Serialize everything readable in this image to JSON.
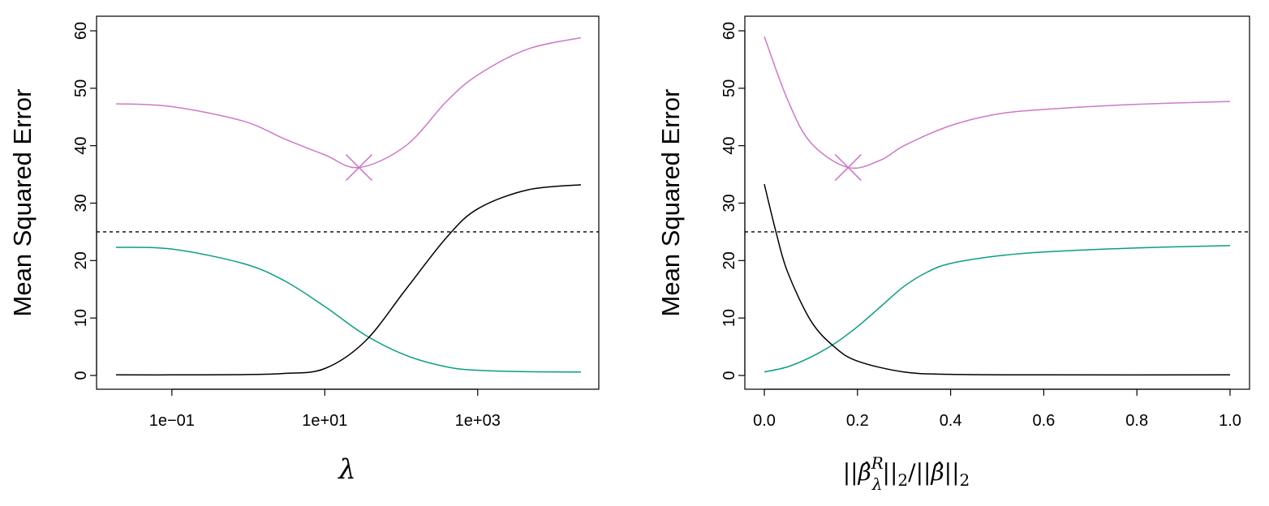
{
  "colors": {
    "test_mse": "#CC79C7",
    "variance": "#0A9E80",
    "bias": "#000000",
    "reference": "#000000"
  },
  "chart_data": [
    {
      "type": "line",
      "xscale": "log",
      "xlabel": "λ",
      "ylabel": "Mean Squared Error",
      "xlim": [
        0.0186,
        22400
      ],
      "ylim": [
        0,
        60
      ],
      "x_ticks": [
        0.1,
        10,
        1000
      ],
      "x_tick_labels": [
        "1e−01",
        "1e+01",
        "1e+03"
      ],
      "y_ticks": [
        0,
        10,
        20,
        30,
        40,
        50,
        60
      ],
      "y_tick_labels": [
        "0",
        "10",
        "20",
        "30",
        "40",
        "50",
        "60"
      ],
      "grid": false,
      "hline": {
        "y": 25,
        "style": "dashed"
      },
      "marker": {
        "x": 28,
        "y": 36.2,
        "shape": "cross",
        "series": "test_mse"
      },
      "series": [
        {
          "key": "test_mse",
          "x": [
            0.0186,
            0.1,
            0.85,
            2.95,
            10,
            28,
            115,
            390,
            1000,
            4470,
            22400
          ],
          "y": [
            47.3,
            46.8,
            44.3,
            41.2,
            38.4,
            36.2,
            40.0,
            47.7,
            52.3,
            56.8,
            58.8
          ]
        },
        {
          "key": "variance",
          "x": [
            0.0186,
            0.1,
            0.85,
            2.95,
            10,
            34,
            115,
            390,
            1000,
            4470,
            22400
          ],
          "y": [
            22.3,
            22.0,
            19.5,
            16.5,
            12.0,
            7.0,
            3.5,
            1.5,
            0.9,
            0.65,
            0.6
          ]
        },
        {
          "key": "bias",
          "x": [
            0.0186,
            0.1,
            0.85,
            2.95,
            10,
            34,
            115,
            390,
            1000,
            4470,
            22400
          ],
          "y": [
            0.1,
            0.1,
            0.15,
            0.35,
            1.2,
            6.0,
            15.0,
            24.0,
            29.0,
            32.3,
            33.2
          ]
        }
      ]
    },
    {
      "type": "line",
      "xscale": "linear",
      "xlabel_parts": [
        "||",
        "β̂",
        "R",
        "λ",
        "||",
        "2",
        "/||",
        "β̂",
        "||",
        "2"
      ],
      "ylabel": "Mean Squared Error",
      "xlim": [
        0,
        1
      ],
      "ylim": [
        0,
        60
      ],
      "x_ticks": [
        0,
        0.2,
        0.4,
        0.6,
        0.8,
        1.0
      ],
      "x_tick_labels": [
        "0.0",
        "0.2",
        "0.4",
        "0.6",
        "0.8",
        "1.0"
      ],
      "y_ticks": [
        0,
        10,
        20,
        30,
        40,
        50,
        60
      ],
      "y_tick_labels": [
        "0",
        "10",
        "20",
        "30",
        "40",
        "50",
        "60"
      ],
      "grid": false,
      "hline": {
        "y": 25,
        "style": "dashed"
      },
      "marker": {
        "x": 0.18,
        "y": 36.2,
        "shape": "cross",
        "series": "test_mse"
      },
      "series": [
        {
          "key": "test_mse",
          "x": [
            0,
            0.05,
            0.1,
            0.18,
            0.25,
            0.3,
            0.4,
            0.5,
            0.6,
            0.8,
            1.0
          ],
          "y": [
            59.0,
            48.0,
            40.5,
            36.2,
            37.5,
            40.0,
            43.5,
            45.5,
            46.3,
            47.2,
            47.7
          ]
        },
        {
          "key": "variance",
          "x": [
            0,
            0.05,
            0.1,
            0.15,
            0.2,
            0.25,
            0.3,
            0.35,
            0.4,
            0.5,
            0.6,
            0.8,
            1.0
          ],
          "y": [
            0.6,
            1.5,
            3.2,
            5.5,
            8.5,
            12.0,
            15.5,
            18.0,
            19.5,
            20.8,
            21.5,
            22.2,
            22.6
          ]
        },
        {
          "key": "bias",
          "x": [
            0,
            0.025,
            0.05,
            0.1,
            0.15,
            0.2,
            0.3,
            0.4,
            0.6,
            1.0
          ],
          "y": [
            33.3,
            25.0,
            18.0,
            9.5,
            5.0,
            2.5,
            0.6,
            0.2,
            0.1,
            0.1
          ]
        }
      ]
    }
  ]
}
